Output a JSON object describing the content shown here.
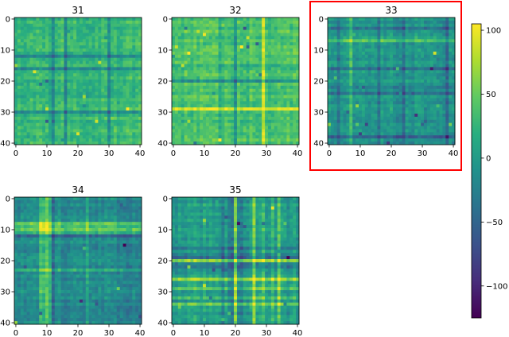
{
  "chart_data": {
    "type": "heatmap",
    "colormap": "viridis",
    "grid": false,
    "matrix_size": 41,
    "highlighted_panel": "33",
    "highlight_color": "#ff0000",
    "panels": [
      {
        "title": "31",
        "xticks": [
          "0",
          "10",
          "20",
          "30",
          "40"
        ],
        "yticks": [
          "0",
          "10",
          "20",
          "30",
          "40"
        ]
      },
      {
        "title": "32",
        "xticks": [
          "0",
          "10",
          "20",
          "30",
          "40"
        ],
        "yticks": [
          "0",
          "10",
          "20",
          "30",
          "40"
        ]
      },
      {
        "title": "33",
        "xticks": [
          "0",
          "10",
          "20",
          "30",
          "40"
        ],
        "yticks": [
          "0",
          "10",
          "20",
          "30",
          "40"
        ]
      },
      {
        "title": "34",
        "xticks": [
          "0",
          "10",
          "20",
          "30",
          "40"
        ],
        "yticks": [
          "0",
          "10",
          "20",
          "30",
          "40"
        ]
      },
      {
        "title": "35",
        "xticks": [
          "0",
          "10",
          "20",
          "30",
          "40"
        ],
        "yticks": [
          "0",
          "10",
          "20",
          "30",
          "40"
        ]
      }
    ],
    "colorbar": {
      "range": [
        -125,
        105
      ],
      "ticks": [
        {
          "value": 100,
          "label": "100"
        },
        {
          "value": 50,
          "label": "50"
        },
        {
          "value": 0,
          "label": "0"
        },
        {
          "value": -50,
          "label": "−50"
        },
        {
          "value": -100,
          "label": "−100"
        }
      ]
    }
  }
}
